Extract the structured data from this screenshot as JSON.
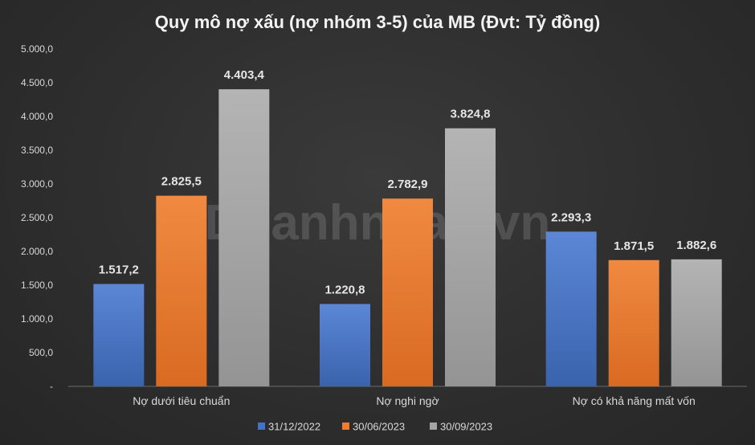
{
  "watermark": "Doanhnhan.vn",
  "chart_data": {
    "type": "bar",
    "title": "Quy mô nợ xấu (nợ nhóm 3-5) của MB (Đvt: Tỷ đồng)",
    "categories": [
      "Nợ dưới tiêu chuẩn",
      "Nợ nghi ngờ",
      "Nợ có khả năng mất vốn"
    ],
    "series": [
      {
        "name": "31/12/2022",
        "color": "#4472c4",
        "values": [
          1517.2,
          1220.8,
          2293.3
        ],
        "labels": [
          "1.517,2",
          "1.220,8",
          "2.293,3"
        ]
      },
      {
        "name": "30/06/2023",
        "color": "#ed7d31",
        "values": [
          2825.5,
          2782.9,
          1871.5
        ],
        "labels": [
          "2.825,5",
          "2.782,9",
          "1.871,5"
        ]
      },
      {
        "name": "30/09/2023",
        "color": "#a5a5a5",
        "values": [
          4403.4,
          3824.8,
          1882.6
        ],
        "labels": [
          "4.403,4",
          "3.824,8",
          "1.882,6"
        ]
      }
    ],
    "yticks": [
      "-",
      "500,0",
      "1.000,0",
      "1.500,0",
      "2.000,0",
      "2.500,0",
      "3.000,0",
      "3.500,0",
      "4.000,0",
      "4.500,0",
      "5.000,0"
    ],
    "ylim": [
      0,
      5000
    ],
    "xlabel": "",
    "ylabel": "",
    "grid": false,
    "legend_position": "bottom"
  }
}
